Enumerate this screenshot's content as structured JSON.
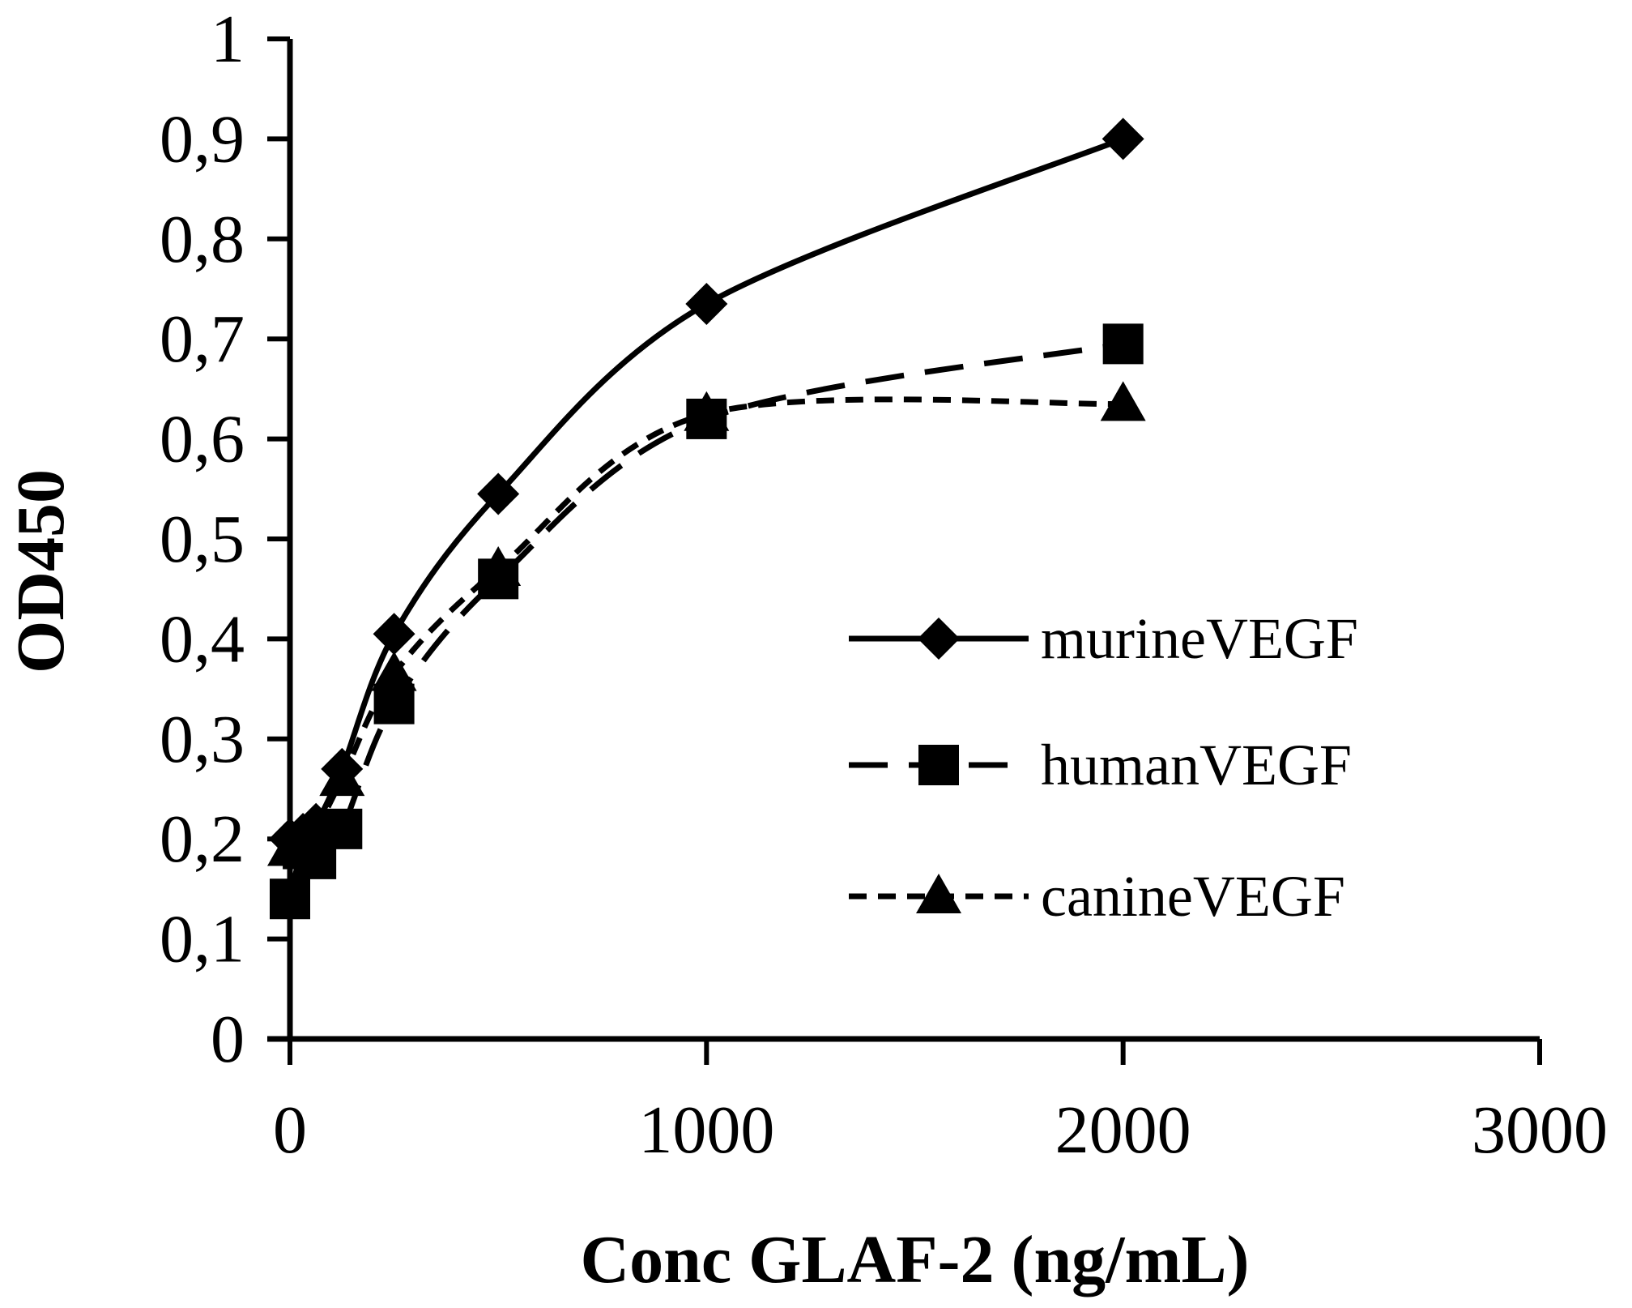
{
  "chart_data": {
    "type": "line",
    "title": "",
    "xlabel": "Conc GLAF-2 (ng/mL)",
    "ylabel": "OD450",
    "xlim": [
      0,
      3000
    ],
    "ylim": [
      0,
      1
    ],
    "x_ticks": [
      0,
      1000,
      2000,
      3000
    ],
    "x_tick_labels": [
      "0",
      "1000",
      "2000",
      "3000"
    ],
    "y_ticks": [
      0,
      0.1,
      0.2,
      0.3,
      0.4,
      0.5,
      0.6,
      0.7,
      0.8,
      0.9,
      1
    ],
    "y_tick_labels": [
      "0",
      "0,1",
      "0,2",
      "0,3",
      "0,4",
      "0,5",
      "0,6",
      "0,7",
      "0,8",
      "0,9",
      "1"
    ],
    "grid": false,
    "legend_position": "right",
    "series": [
      {
        "name": "murineVEGF",
        "marker": "diamond",
        "line_style": "solid",
        "x": [
          0,
          31.25,
          62.5,
          125,
          250,
          500,
          1000,
          2000
        ],
        "y": [
          0.2,
          0.205,
          0.215,
          0.27,
          0.405,
          0.545,
          0.735,
          0.9
        ]
      },
      {
        "name": "humanVEGF",
        "marker": "square",
        "line_style": "dashed",
        "x": [
          0,
          31.25,
          62.5,
          125,
          250,
          500,
          1000,
          2000
        ],
        "y": [
          0.14,
          0.19,
          0.18,
          0.21,
          0.335,
          0.46,
          0.62,
          0.695
        ]
      },
      {
        "name": "canineVEGF",
        "marker": "triangle",
        "line_style": "dotted",
        "x": [
          0,
          31.25,
          62.5,
          125,
          250,
          500,
          1000,
          2000
        ],
        "y": [
          0.19,
          0.2,
          0.21,
          0.26,
          0.365,
          0.47,
          0.625,
          0.635
        ]
      }
    ]
  }
}
